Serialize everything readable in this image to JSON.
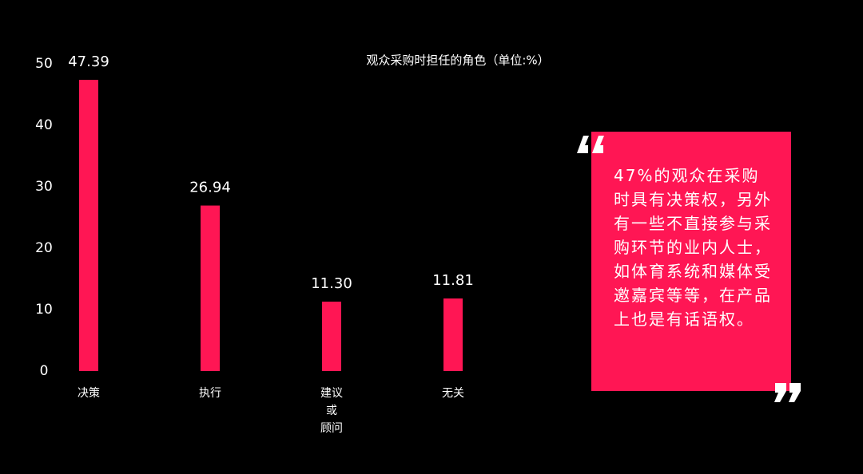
{
  "chart_data": {
    "type": "bar",
    "title": "观众采购时担任的角色（单位:%）",
    "categories": [
      "决策",
      "执行",
      "建议\n或\n顾问",
      "无关"
    ],
    "values": [
      47.39,
      26.94,
      11.3,
      11.81
    ],
    "value_labels": [
      "47.39",
      "26.94",
      "11.30",
      "11.81"
    ],
    "color": "#ff1654",
    "ylim": [
      0,
      50
    ],
    "yticks": [
      0,
      10,
      20,
      30,
      40,
      50
    ],
    "grid": false
  },
  "quote": "47%的观众在采购时具有决策权，另外有一些不直接参与采购环节的业内人士，如体育系统和媒体受邀嘉宾等等，在产品上也是有话语权。"
}
